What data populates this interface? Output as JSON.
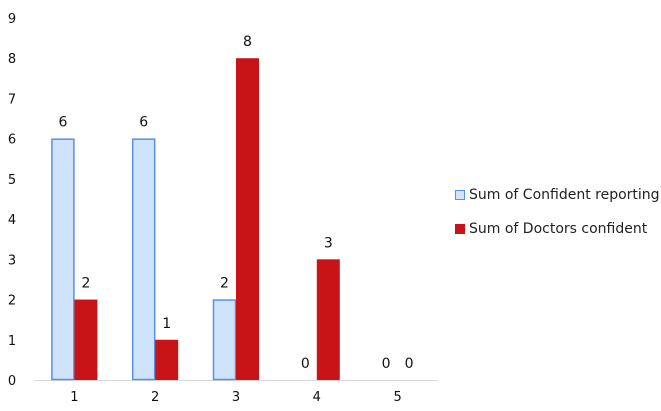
{
  "chart_data": {
    "type": "bar",
    "title": "",
    "xlabel": "",
    "ylabel": "",
    "categories": [
      "1",
      "2",
      "3",
      "4",
      "5"
    ],
    "ylim": [
      0,
      9
    ],
    "yticks": [
      "0",
      "1",
      "2",
      "3",
      "4",
      "5",
      "6",
      "7",
      "8",
      "9"
    ],
    "grid": false,
    "legend_position": "right",
    "series": [
      {
        "name": "Sum of Confident reporting",
        "values": [
          6,
          6,
          2,
          0,
          0
        ],
        "fill": "#cfe3fb",
        "stroke": "#5b8fe0"
      },
      {
        "name": "Sum of Doctors confident",
        "values": [
          2,
          1,
          8,
          3,
          0
        ],
        "fill": "#c81416",
        "stroke": "#c81416"
      }
    ]
  }
}
